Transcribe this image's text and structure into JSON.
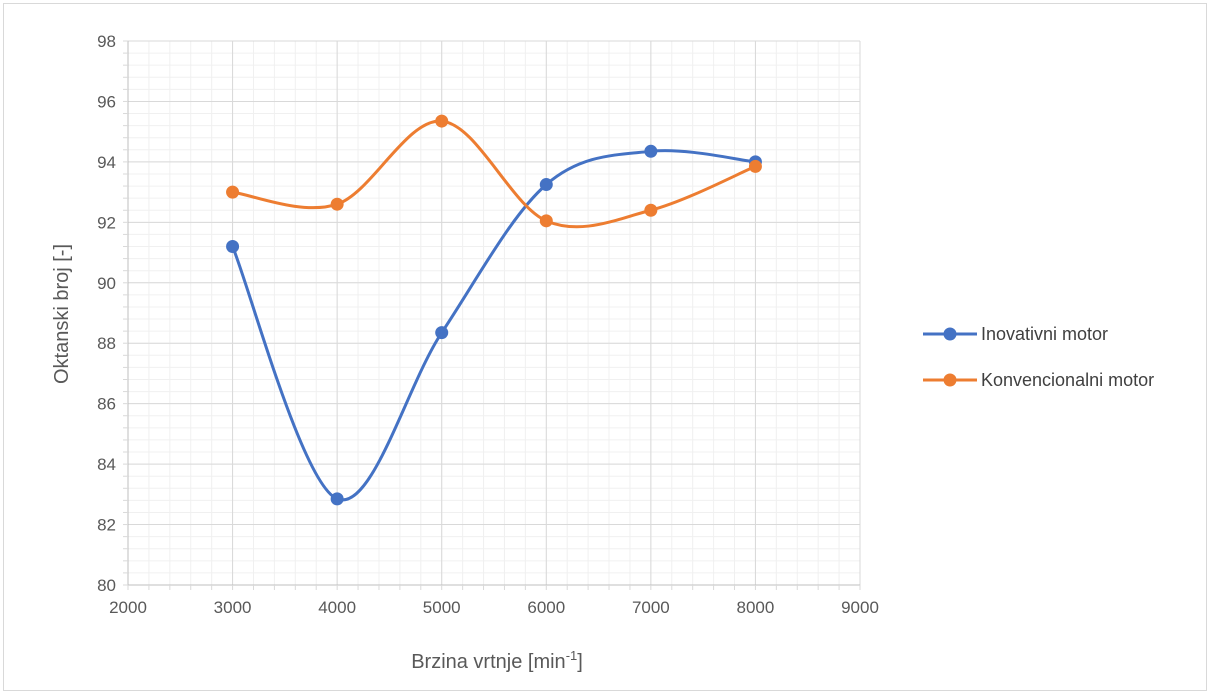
{
  "chart_data": {
    "type": "line",
    "smooth": true,
    "xlabel": "Brzina vrtnje [min",
    "xlabel_sup": "-1",
    "xlabel_suffix": "]",
    "ylabel": "Oktanski broj [-]",
    "xlim": [
      2000,
      9000
    ],
    "ylim": [
      80,
      98
    ],
    "x_major_step": 1000,
    "y_major_step": 2,
    "x_ticks": [
      "2000",
      "3000",
      "4000",
      "5000",
      "6000",
      "7000",
      "8000",
      "9000"
    ],
    "y_ticks": [
      "80",
      "82",
      "84",
      "86",
      "88",
      "90",
      "92",
      "94",
      "96",
      "98"
    ],
    "grid": true,
    "minor_grid": true,
    "legend_position": "right",
    "x": [
      3000,
      4000,
      5000,
      6000,
      7000,
      8000
    ],
    "series": [
      {
        "name": "Inovativni motor",
        "color": "#4472C4",
        "values": [
          91.2,
          82.85,
          88.35,
          93.25,
          94.35,
          94.0
        ]
      },
      {
        "name": "Konvencionalni motor",
        "color": "#ED7D31",
        "values": [
          93.0,
          92.6,
          95.35,
          92.05,
          92.4,
          93.85
        ]
      }
    ]
  }
}
